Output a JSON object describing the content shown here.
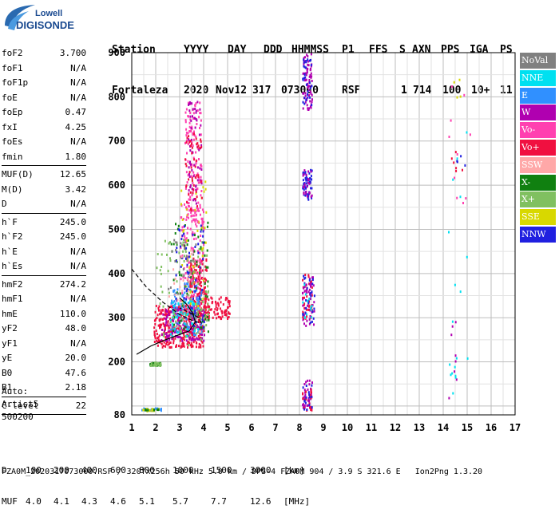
{
  "logo": {
    "line1": "Lowell",
    "line2": "DIGISONDE"
  },
  "header": {
    "labels": [
      "Station",
      "YYYY",
      "DAY",
      "DDD",
      "HHMMSS",
      "P1",
      "FFS",
      "S",
      "AXN",
      "PPS",
      "IGA",
      "PS"
    ],
    "values": [
      "Fortaleza",
      "2020",
      "Nov12",
      "317",
      "073000",
      "RSF",
      "1",
      "714",
      "100",
      "10+",
      "11"
    ]
  },
  "params": {
    "group1": [
      {
        "name": "foF2",
        "value": "3.700"
      },
      {
        "name": "foF1",
        "value": "N/A"
      },
      {
        "name": "foF1p",
        "value": "N/A"
      },
      {
        "name": "foE",
        "value": "N/A"
      },
      {
        "name": "foEp",
        "value": "0.47"
      },
      {
        "name": "fxI",
        "value": "4.25"
      },
      {
        "name": "foEs",
        "value": "N/A"
      },
      {
        "name": "fmin",
        "value": "1.80"
      }
    ],
    "group2": [
      {
        "name": "MUF(D)",
        "value": "12.65"
      },
      {
        "name": "M(D)",
        "value": "3.42"
      },
      {
        "name": "D",
        "value": "N/A"
      }
    ],
    "group3": [
      {
        "name": "h`F",
        "value": "245.0"
      },
      {
        "name": "h`F2",
        "value": "245.0"
      },
      {
        "name": "h`E",
        "value": "N/A"
      },
      {
        "name": "h`Es",
        "value": "N/A"
      }
    ],
    "group4": [
      {
        "name": "hmF2",
        "value": "274.2"
      },
      {
        "name": "hmF1",
        "value": "N/A"
      },
      {
        "name": "hmE",
        "value": "110.0"
      },
      {
        "name": "yF2",
        "value": "48.0"
      },
      {
        "name": "yF1",
        "value": "N/A"
      },
      {
        "name": "yE",
        "value": "20.0"
      },
      {
        "name": "B0",
        "value": "47.6"
      },
      {
        "name": "B1",
        "value": "2.18"
      }
    ],
    "group5": [
      {
        "name": "C-level",
        "value": "22"
      }
    ]
  },
  "auto": {
    "line1": "Auto:",
    "line2": "Artist5",
    "line3": "500200"
  },
  "legend": [
    {
      "label": "NoVal",
      "color": "#808080"
    },
    {
      "label": "NNE",
      "color": "#00e0f0"
    },
    {
      "label": "E",
      "color": "#3090ff"
    },
    {
      "label": "W",
      "color": "#b000b0"
    },
    {
      "label": "Vo-",
      "color": "#ff40b0"
    },
    {
      "label": "Vo+",
      "color": "#f01040"
    },
    {
      "label": "SSW",
      "color": "#ffa8a8"
    },
    {
      "label": "X-",
      "color": "#108010"
    },
    {
      "label": "X+",
      "color": "#80c060"
    },
    {
      "label": "SSE",
      "color": "#d8d800"
    },
    {
      "label": "NNW",
      "color": "#2020e0"
    }
  ],
  "footer": {
    "d_label": "D",
    "d_values": [
      "100",
      "200",
      "400",
      "600",
      "800",
      "1000",
      "1500",
      "3000",
      "[km]"
    ],
    "muf_label": "MUF",
    "muf_values": [
      "4.0",
      "4.1",
      "4.3",
      "4.6",
      "5.1",
      "5.7",
      "7.7",
      "12.6",
      "[MHz]"
    ],
    "filename": "FZA0M_2020317073000.RSF / 320fx256h 50 kHz 5.0 km / DPS-4 FZA0M 904 / 3.9 S 321.6 E   Ion2Png 1.3.20"
  },
  "chart_data": {
    "type": "scatter",
    "title": "",
    "xlabel": "",
    "ylabel": "",
    "xlim": [
      1,
      17
    ],
    "ylim": [
      80,
      900
    ],
    "xticks": [
      1,
      2,
      3,
      4,
      5,
      6,
      7,
      8,
      9,
      10,
      11,
      12,
      13,
      14,
      15,
      16,
      17
    ],
    "yticks": [
      80,
      200,
      300,
      400,
      500,
      600,
      700,
      800,
      900
    ],
    "grid": true,
    "grid_minor_x": 0.5,
    "grid_minor_y": 50,
    "clusters": [
      {
        "color": "#f01040",
        "f": [
          1.9,
          4.0
        ],
        "h": [
          235,
          330
        ],
        "n": 360
      },
      {
        "color": "#f01040",
        "f": [
          3.4,
          4.1
        ],
        "h": [
          300,
          440
        ],
        "n": 180
      },
      {
        "color": "#f01040",
        "f": [
          4.0,
          5.1
        ],
        "h": [
          300,
          350
        ],
        "n": 90
      },
      {
        "color": "#b000b0",
        "f": [
          2.2,
          4.0
        ],
        "h": [
          250,
          330
        ],
        "n": 160
      },
      {
        "color": "#ff40b0",
        "f": [
          3.0,
          4.0
        ],
        "h": [
          320,
          560
        ],
        "n": 150
      },
      {
        "color": "#3090ff",
        "f": [
          2.6,
          3.9
        ],
        "h": [
          260,
          380
        ],
        "n": 100
      },
      {
        "color": "#00e0f0",
        "f": [
          2.6,
          3.8
        ],
        "h": [
          260,
          340
        ],
        "n": 60
      },
      {
        "color": "#108010",
        "f": [
          2.6,
          4.2
        ],
        "h": [
          270,
          520
        ],
        "n": 70
      },
      {
        "color": "#80c060",
        "f": [
          2.0,
          4.2
        ],
        "h": [
          240,
          480
        ],
        "n": 90
      },
      {
        "color": "#d8d800",
        "f": [
          3.0,
          4.1
        ],
        "h": [
          300,
          620
        ],
        "n": 40
      },
      {
        "color": "#2020e0",
        "f": [
          2.8,
          4.0
        ],
        "h": [
          280,
          520
        ],
        "n": 60
      },
      {
        "color": "#808080",
        "f": [
          2.5,
          3.7
        ],
        "h": [
          280,
          480
        ],
        "n": 35
      },
      {
        "color": "#ffa8a8",
        "f": [
          2.5,
          3.9
        ],
        "h": [
          270,
          460
        ],
        "n": 30
      },
      {
        "color": "#ff40b0",
        "f": [
          3.2,
          3.9
        ],
        "h": [
          520,
          790
        ],
        "n": 120
      },
      {
        "color": "#b000b0",
        "f": [
          3.3,
          3.9
        ],
        "h": [
          560,
          800
        ],
        "n": 60
      },
      {
        "color": "#f01040",
        "f": [
          3.2,
          3.9
        ],
        "h": [
          540,
          720
        ],
        "n": 50
      },
      {
        "color": "#108010",
        "f": [
          1.7,
          2.2
        ],
        "h": [
          194,
          200
        ],
        "n": 28
      },
      {
        "color": "#80c060",
        "f": [
          1.7,
          2.2
        ],
        "h": [
          193,
          201
        ],
        "n": 22
      },
      {
        "color": "#3090ff",
        "f": [
          1.4,
          2.2
        ],
        "h": [
          92,
          97
        ],
        "n": 28
      },
      {
        "color": "#d8d800",
        "f": [
          1.4,
          2.2
        ],
        "h": [
          91,
          96
        ],
        "n": 14
      },
      {
        "color": "#108010",
        "f": [
          1.5,
          2.1
        ],
        "h": [
          93,
          95
        ],
        "n": 10
      },
      {
        "color": "#b000b0",
        "f": [
          8.1,
          8.5
        ],
        "h": [
          770,
          900
        ],
        "n": 70
      },
      {
        "color": "#2020e0",
        "f": [
          8.1,
          8.5
        ],
        "h": [
          780,
          890
        ],
        "n": 30
      },
      {
        "color": "#2020e0",
        "f": [
          8.1,
          8.5
        ],
        "h": [
          570,
          640
        ],
        "n": 50
      },
      {
        "color": "#b000b0",
        "f": [
          8.1,
          8.5
        ],
        "h": [
          570,
          640
        ],
        "n": 25
      },
      {
        "color": "#f01040",
        "f": [
          8.1,
          8.5
        ],
        "h": [
          300,
          400
        ],
        "n": 40
      },
      {
        "color": "#b000b0",
        "f": [
          8.1,
          8.6
        ],
        "h": [
          280,
          400
        ],
        "n": 45
      },
      {
        "color": "#2020e0",
        "f": [
          8.1,
          8.6
        ],
        "h": [
          290,
          400
        ],
        "n": 25
      },
      {
        "color": "#00e0f0",
        "f": [
          8.1,
          8.5
        ],
        "h": [
          300,
          380
        ],
        "n": 12
      },
      {
        "color": "#b000b0",
        "f": [
          8.1,
          8.5
        ],
        "h": [
          90,
          160
        ],
        "n": 40
      },
      {
        "color": "#f01040",
        "f": [
          8.1,
          8.5
        ],
        "h": [
          90,
          150
        ],
        "n": 20
      },
      {
        "color": "#2020e0",
        "f": [
          8.1,
          8.5
        ],
        "h": [
          90,
          150
        ],
        "n": 15
      },
      {
        "color": "#ff40b0",
        "f": [
          14.2,
          15.1
        ],
        "h": [
          560,
          860
        ],
        "n": 10
      },
      {
        "color": "#f01040",
        "f": [
          14.2,
          14.8
        ],
        "h": [
          600,
          720
        ],
        "n": 6
      },
      {
        "color": "#00e0f0",
        "f": [
          14.2,
          15.1
        ],
        "h": [
          120,
          880
        ],
        "n": 12
      },
      {
        "color": "#d8d800",
        "f": [
          14.3,
          15.1
        ],
        "h": [
          800,
          850
        ],
        "n": 4
      },
      {
        "color": "#2020e0",
        "f": [
          14.5,
          15.0
        ],
        "h": [
          640,
          670
        ],
        "n": 4
      },
      {
        "color": "#b000b0",
        "f": [
          14.2,
          14.6
        ],
        "h": [
          120,
          320
        ],
        "n": 8
      },
      {
        "color": "#00e0f0",
        "f": [
          14.2,
          14.5
        ],
        "h": [
          160,
          200
        ],
        "n": 6
      }
    ],
    "curves": [
      {
        "name": "profile",
        "style": "solid",
        "points": [
          [
            1.2,
            217
          ],
          [
            1.8,
            236
          ],
          [
            2.4,
            250
          ],
          [
            3.0,
            262
          ],
          [
            3.4,
            270
          ],
          [
            3.65,
            290
          ],
          [
            3.55,
            310
          ],
          [
            3.3,
            330
          ],
          [
            3.0,
            345
          ]
        ]
      },
      {
        "name": "extrapolated",
        "style": "dashed",
        "points": [
          [
            1.0,
            410
          ],
          [
            1.6,
            370
          ],
          [
            2.3,
            335
          ],
          [
            3.0,
            307
          ],
          [
            3.6,
            292
          ],
          [
            3.9,
            288
          ],
          [
            3.8,
            300
          ],
          [
            3.4,
            312
          ],
          [
            3.0,
            322
          ]
        ]
      }
    ]
  }
}
